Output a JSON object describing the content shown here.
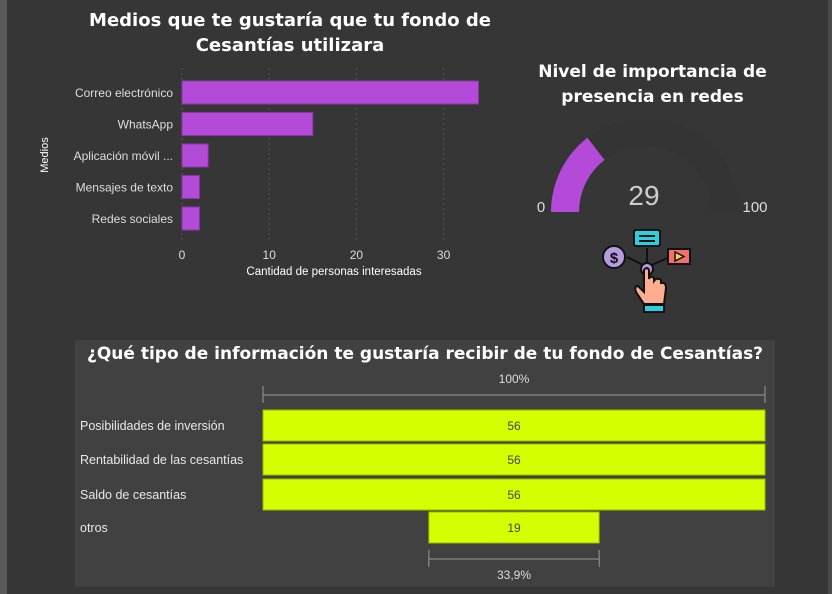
{
  "bar_chart": {
    "title": "Medios que te gustaría que tu fondo de Cesantías utilizara"
  },
  "gauge": {
    "title": "Nivel de importancia de presencia en redes",
    "value": "29",
    "min": "0",
    "max": "100",
    "icon": "social-media-hand-icon"
  },
  "funnel": {
    "title": "¿Qué tipo de información te gustaría recibir de tu fondo de Cesantías?",
    "top_pct": "100%",
    "bottom_pct": "33,9%"
  },
  "colors": {
    "purple": "#b44bd8",
    "lime": "#d4ff00",
    "bg": "#363636",
    "panel": "#414141"
  },
  "chart_data": [
    {
      "type": "bar",
      "orientation": "horizontal",
      "title": "Medios que te gustaría que tu fondo de Cesantías utilizara",
      "xlabel": "Cantidad de personas interesadas",
      "ylabel": "Medios",
      "categories": [
        "Correo electrónico",
        "WhatsApp",
        "Aplicación móvil ...",
        "Mensajes de texto",
        "Redes sociales"
      ],
      "values": [
        34,
        15,
        3,
        2,
        2
      ],
      "xticks": [
        "0",
        "10",
        "20",
        "30"
      ],
      "xlim": [
        0,
        35
      ],
      "grid": true
    },
    {
      "type": "gauge",
      "title": "Nivel de importancia de presencia en redes",
      "value": 29,
      "min": 0,
      "max": 100
    },
    {
      "type": "funnel",
      "title": "¿Qué tipo de información te gustaría recibir de tu fondo de Cesantías?",
      "categories": [
        "Posibilidades de inversión",
        "Rentabilidad de las cesantías",
        "Saldo de cesantías",
        "otros"
      ],
      "values": [
        56,
        56,
        56,
        19
      ],
      "value_labels": [
        "56",
        "56",
        "56",
        "19"
      ]
    }
  ]
}
